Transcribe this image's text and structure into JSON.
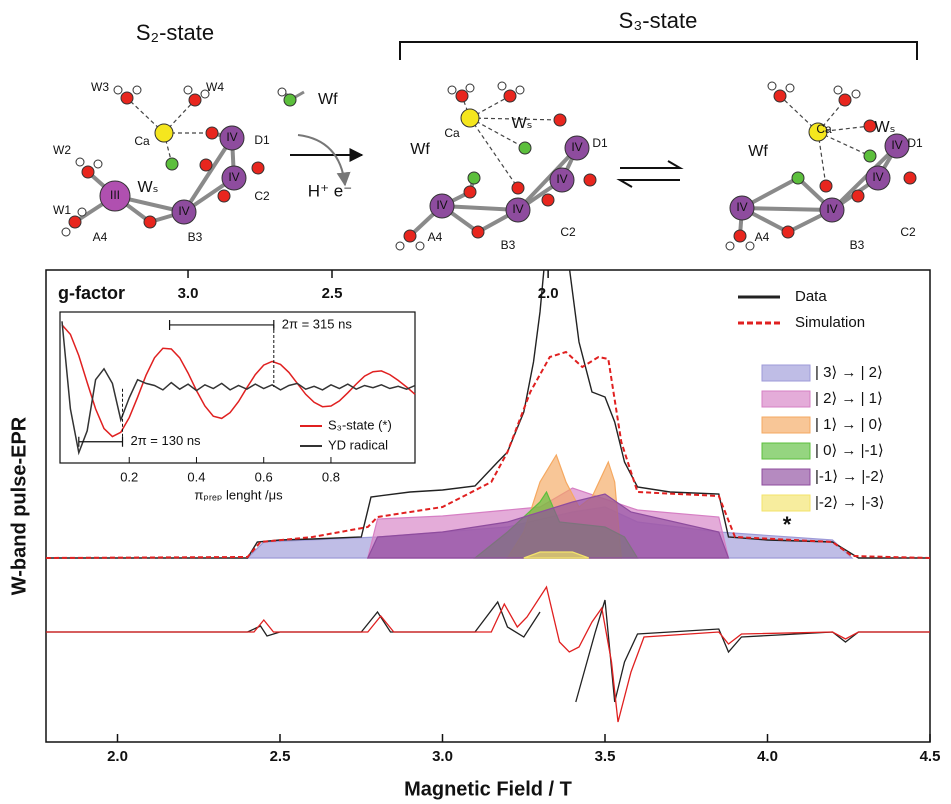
{
  "scheme": {
    "s2_title": "S₂-state",
    "s3_title": "S₃-state",
    "reagent": "Wf",
    "products": "H⁺ e⁻",
    "structures": [
      {
        "labels": [
          "W3",
          "W4",
          "Ca",
          "D1",
          "W2",
          "Wₛ",
          "C2",
          "W1",
          "A4",
          "B3",
          "III",
          "IV",
          "IV",
          "IV"
        ]
      },
      {
        "labels": [
          "Ca",
          "Wₛ",
          "D1",
          "Wf",
          "IV",
          "IV",
          "IV",
          "IV",
          "C2",
          "A4",
          "B3"
        ]
      },
      {
        "labels": [
          "Ca",
          "Wₛ",
          "D1",
          "Wf",
          "IV",
          "IV",
          "IV",
          "IV",
          "C2",
          "A4",
          "B3"
        ]
      }
    ]
  },
  "chart_data": [
    {
      "type": "line",
      "x_label": "Magnetic Field / T",
      "y_label": "W-band pulse-EPR",
      "x2_label": "g-factor",
      "xlim": [
        1.78,
        4.5
      ],
      "ylim": [
        0,
        47.2
      ],
      "xticks": [
        {
          "value": 2,
          "label": "2.0"
        },
        2.5,
        {
          "value": 3,
          "label": "3.0"
        },
        3.5,
        {
          "value": 4,
          "label": "4.0"
        },
        4.5
      ],
      "x2ticks": [
        {
          "value": 2.217,
          "label": "3.0"
        },
        {
          "value": 2.66,
          "label": "2.5"
        },
        {
          "value": 3.325,
          "label": "2.0"
        }
      ],
      "series": [
        {
          "name": "Data",
          "color": "#222222",
          "style": "line",
          "x": [
            1.78,
            2.4,
            2.43,
            2.5,
            2.6,
            2.75,
            2.78,
            2.9,
            3.0,
            3.1,
            3.17,
            3.2,
            3.25,
            3.28,
            3.3,
            3.32,
            3.38,
            3.42,
            3.46,
            3.5,
            3.53,
            3.56,
            3.6,
            3.7,
            3.85,
            3.88,
            4.0,
            4.2,
            4.25,
            4.28,
            4.5
          ],
          "values": [
            18.4,
            18.4,
            20,
            20.2,
            20.3,
            20.5,
            24.5,
            25,
            25.2,
            25.6,
            28,
            29,
            33,
            38,
            43,
            50,
            50,
            40,
            35,
            34.5,
            32,
            28,
            25.5,
            25,
            24.8,
            20.5,
            20.2,
            20,
            19,
            18.4,
            18.4
          ]
        },
        {
          "name": "Simulation",
          "color": "#e02020",
          "style": "dashed",
          "x": [
            1.78,
            2.4,
            2.44,
            2.6,
            2.77,
            2.8,
            3.0,
            3.15,
            3.2,
            3.27,
            3.33,
            3.38,
            3.43,
            3.48,
            3.51,
            3.55,
            3.6,
            3.85,
            3.9,
            4.2,
            4.26,
            4.5
          ],
          "values": [
            18.4,
            18.5,
            20,
            20.5,
            21.5,
            22.5,
            23.5,
            26,
            29,
            35,
            38.5,
            39,
            37.5,
            38.5,
            38.3,
            30,
            25,
            24.6,
            20.5,
            20,
            18.6,
            18.4
          ]
        },
        {
          "name": "| 3⟩ → | 2⟩",
          "color": "#9d9ad8",
          "style": "area",
          "x": [
            2.4,
            2.45,
            2.8,
            3.2,
            3.4,
            3.5,
            3.6,
            3.85,
            4.2,
            4.26
          ],
          "values": [
            18.4,
            20,
            20.5,
            21.5,
            23,
            23.5,
            22,
            21,
            20.2,
            18.4
          ]
        },
        {
          "name": "| 2⟩ → | 1⟩",
          "color": "#d67fc4",
          "style": "area",
          "x": [
            2.77,
            2.8,
            3.0,
            3.3,
            3.4,
            3.6,
            3.85,
            3.88
          ],
          "values": [
            18.4,
            22.3,
            22.6,
            23.5,
            25.4,
            23.2,
            22.5,
            18.4
          ]
        },
        {
          "name": "| 1⟩ → | 0⟩",
          "color": "#f5a860",
          "style": "area",
          "x": [
            3.2,
            3.25,
            3.3,
            3.35,
            3.38,
            3.42,
            3.46,
            3.51,
            3.53,
            3.55
          ],
          "values": [
            18.4,
            21,
            26,
            28.7,
            26,
            23.5,
            24.5,
            28,
            26,
            18.4
          ]
        },
        {
          "name": "| 0⟩ → |-1⟩",
          "color": "#5cbf3c",
          "style": "area",
          "x": [
            3.1,
            3.2,
            3.3,
            3.32,
            3.36,
            3.5,
            3.56,
            3.6
          ],
          "values": [
            18.4,
            21,
            24,
            25,
            22,
            21.5,
            20.5,
            18.4
          ]
        },
        {
          "name": "|-1⟩ → |-2⟩",
          "color": "#8e4c9e",
          "style": "area",
          "x": [
            2.77,
            2.8,
            3.0,
            3.2,
            3.4,
            3.5,
            3.58,
            3.85,
            3.88
          ],
          "values": [
            18.4,
            20.5,
            21,
            22,
            24,
            24.8,
            23,
            21,
            18.4
          ]
        },
        {
          "name": "|-2⟩ → |-3⟩",
          "color": "#f3e36a",
          "style": "area",
          "x": [
            3.25,
            3.3,
            3.4,
            3.45
          ],
          "values": [
            18.4,
            19,
            19,
            18.4
          ]
        }
      ],
      "derivative_series": [
        {
          "color": "#222222",
          "x": [
            1.78,
            2.4,
            2.44,
            2.46,
            2.5,
            2.75,
            2.8,
            2.84,
            3.1,
            3.17,
            3.2,
            3.25,
            3.3,
            3.33,
            3.41,
            3.47,
            3.5,
            3.53,
            3.56,
            3.6,
            3.85,
            3.88,
            3.92,
            4.2,
            4.24,
            4.28,
            4.5
          ],
          "values": [
            11,
            11,
            11.6,
            10.6,
            11,
            11,
            13,
            11,
            11,
            14,
            11.5,
            10.5,
            13,
            null,
            4,
            11,
            14.2,
            4,
            8,
            10.8,
            11.3,
            9,
            10.5,
            11,
            10,
            11,
            11
          ]
        },
        {
          "color": "#e02020",
          "x": [
            1.78,
            2.42,
            2.45,
            2.48,
            2.77,
            2.81,
            2.85,
            3.15,
            3.19,
            3.23,
            3.26,
            3.32,
            3.36,
            3.39,
            3.42,
            3.46,
            3.49,
            3.52,
            3.54,
            3.58,
            3.62,
            3.85,
            3.88,
            3.92,
            4.2,
            4.24,
            4.28,
            4.5
          ],
          "values": [
            11,
            11,
            12.2,
            11,
            11,
            12.6,
            11,
            11,
            13.8,
            11.5,
            12.5,
            15.5,
            10,
            9,
            9.5,
            12,
            13.4,
            8,
            2,
            7,
            10.5,
            11,
            9.8,
            10.8,
            11,
            10.3,
            11,
            11
          ]
        }
      ],
      "annotations": [
        {
          "text": "*",
          "x": 4.06,
          "y": 21.6
        }
      ]
    },
    {
      "type": "line",
      "x_label": "πₚᵣₑₚ lenght /μs",
      "xlim": [
        0,
        1.05
      ],
      "ylim": [
        -1,
        1
      ],
      "xticks": [
        0.2,
        0.4,
        0.6,
        0.8
      ],
      "x": [
        0,
        0.025,
        0.05,
        0.075,
        0.1,
        0.125,
        0.15,
        0.175,
        0.2,
        0.225,
        0.25,
        0.275,
        0.3,
        0.325,
        0.35,
        0.375,
        0.4,
        0.425,
        0.45,
        0.475,
        0.5,
        0.525,
        0.55,
        0.575,
        0.6,
        0.625,
        0.65,
        0.675,
        0.7,
        0.725,
        0.75,
        0.775,
        0.8,
        0.825,
        0.85,
        0.875,
        0.9,
        0.925,
        0.95,
        0.975,
        1.0,
        1.025,
        1.05
      ],
      "series": [
        {
          "name": "S₃-state (*)",
          "color": "#e02020",
          "values": [
            0.85,
            0.72,
            0.43,
            0.06,
            -0.3,
            -0.57,
            -0.68,
            -0.62,
            -0.42,
            -0.14,
            0.16,
            0.4,
            0.53,
            0.52,
            0.4,
            0.19,
            -0.05,
            -0.26,
            -0.4,
            -0.43,
            -0.35,
            -0.2,
            -0.01,
            0.17,
            0.3,
            0.35,
            0.31,
            0.2,
            0.05,
            -0.1,
            -0.21,
            -0.27,
            -0.26,
            -0.19,
            -0.08,
            0.04,
            0.15,
            0.21,
            0.22,
            0.17,
            0.09,
            0,
            -0.1
          ]
        },
        {
          "name": "YD radical",
          "color": "#333333",
          "values": [
            0.9,
            -0.3,
            -0.9,
            -0.6,
            0.1,
            0.25,
            0.05,
            -0.45,
            -0.15,
            0.1,
            0.05,
            0.02,
            -0.04,
            0.06,
            -0.03,
            0.04,
            -0.05,
            0.03,
            -0.02,
            0.05,
            -0.04,
            0.02,
            -0.03,
            0.04,
            -0.02,
            0.03,
            -0.04,
            0.02,
            0.05,
            -0.03,
            0.01,
            -0.04,
            0.03,
            -0.02,
            0.04,
            -0.03,
            0.02,
            -0.01,
            0.03,
            -0.02,
            0.01,
            -0.03,
            0.02
          ]
        }
      ],
      "annotations": [
        {
          "text": "2π = 315 ns",
          "from": 0.32,
          "to": 0.63,
          "y": 0.85
        },
        {
          "text": "2π = 130 ns",
          "from": 0.05,
          "to": 0.18,
          "y": -0.75
        }
      ]
    }
  ]
}
